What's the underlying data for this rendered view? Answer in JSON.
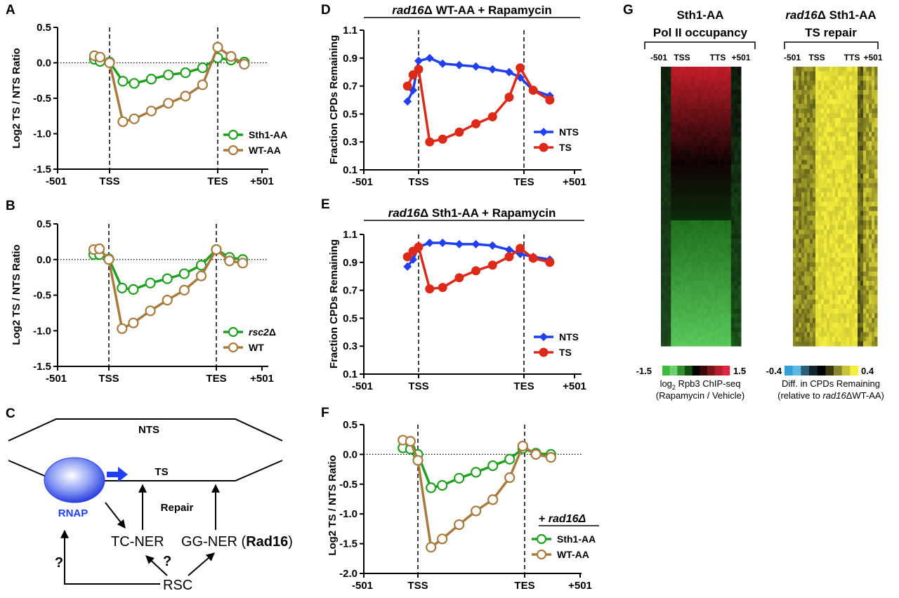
{
  "chart_data": [
    {
      "id": "A",
      "type": "line",
      "panel_label": "A",
      "ylabel": "Log2 TS / NTS Ratio",
      "ylim": [
        -1.5,
        0.5
      ],
      "yticks": [
        "0.5",
        "0.0",
        "-0.5",
        "-1.0",
        "-1.5"
      ],
      "xticks": [
        "-501",
        "TSS",
        "TES",
        "+501"
      ],
      "series": [
        {
          "name": "Sth1-AA",
          "color": "#1fa01f",
          "marker": "open-circle",
          "x": [
            -0.8,
            -0.5,
            0,
            0.7,
            1.3,
            2.2,
            3.1,
            4,
            4.9,
            5.7,
            6.4,
            7.1
          ],
          "values": [
            0.05,
            0.02,
            0.01,
            -0.26,
            -0.29,
            -0.23,
            -0.17,
            -0.14,
            -0.07,
            0.07,
            0.04,
            0.01
          ]
        },
        {
          "name": "WT-AA",
          "color": "#a87a3d",
          "marker": "open-circle",
          "x": [
            -0.8,
            -0.5,
            0,
            0.7,
            1.3,
            2.2,
            3.1,
            4,
            4.9,
            5.7,
            6.4,
            7.1
          ],
          "values": [
            0.1,
            0.08,
            0.0,
            -0.83,
            -0.79,
            -0.68,
            -0.57,
            -0.47,
            -0.31,
            0.22,
            0.09,
            -0.02
          ]
        }
      ]
    },
    {
      "id": "B",
      "type": "line",
      "panel_label": "B",
      "ylabel": "Log2 TS / NTS Ratio",
      "ylim": [
        -1.5,
        0.5
      ],
      "yticks": [
        "0.5",
        "0.0",
        "-0.5",
        "-1.0",
        "-1.5"
      ],
      "xticks": [
        "-501",
        "TSS",
        "TES",
        "+501"
      ],
      "series": [
        {
          "name": "rsc2Δ",
          "color": "#1fa01f",
          "marker": "open-circle",
          "x": [
            -0.8,
            -0.5,
            0,
            0.7,
            1.3,
            2.2,
            3.1,
            4,
            4.9,
            5.7,
            6.4,
            7.1
          ],
          "values": [
            0.07,
            0.07,
            0.01,
            -0.4,
            -0.42,
            -0.33,
            -0.27,
            -0.2,
            -0.08,
            0.14,
            0.03,
            0.0
          ]
        },
        {
          "name": "WT",
          "color": "#a87a3d",
          "marker": "open-circle",
          "x": [
            -0.8,
            -0.5,
            0,
            0.7,
            1.3,
            2.2,
            3.1,
            4,
            4.9,
            5.7,
            6.4,
            7.1
          ],
          "values": [
            0.14,
            0.15,
            0.0,
            -0.97,
            -0.89,
            -0.72,
            -0.57,
            -0.43,
            -0.23,
            0.14,
            -0.02,
            -0.05
          ]
        }
      ]
    },
    {
      "id": "D",
      "type": "line",
      "panel_label": "D",
      "title_italic": "rad16",
      "title_rest": "Δ WT-AA + Rapamycin",
      "ylabel": "Fraction CPDs Remaining",
      "ylim": [
        0.1,
        1.1
      ],
      "yticks": [
        "1.1",
        "0.9",
        "0.7",
        "0.5",
        "0.3",
        "0.1"
      ],
      "xticks": [
        "-501",
        "TSS",
        "TES",
        "+501"
      ],
      "series": [
        {
          "name": "NTS",
          "color": "#1f3ff0",
          "marker": "diamond",
          "x": [
            -0.6,
            -0.3,
            0,
            0.6,
            1.3,
            2.2,
            3.1,
            4,
            4.9,
            5.5,
            6.2,
            7.1
          ],
          "values": [
            0.59,
            0.67,
            0.88,
            0.9,
            0.86,
            0.85,
            0.84,
            0.82,
            0.8,
            0.76,
            0.67,
            0.63
          ]
        },
        {
          "name": "TS",
          "color": "#dd2a18",
          "marker": "circle",
          "x": [
            -0.6,
            -0.3,
            0,
            0.6,
            1.3,
            2.2,
            3.1,
            4,
            4.9,
            5.5,
            6.2,
            7.1
          ],
          "values": [
            0.7,
            0.78,
            0.82,
            0.3,
            0.32,
            0.37,
            0.43,
            0.48,
            0.62,
            0.83,
            0.67,
            0.6
          ]
        }
      ]
    },
    {
      "id": "E",
      "type": "line",
      "panel_label": "E",
      "title_italic": "rad16",
      "title_rest": "Δ Sth1-AA + Rapamycin",
      "ylabel": "Fraction CPDs Remaining",
      "ylim": [
        0.1,
        1.1
      ],
      "yticks": [
        "1.1",
        "0.9",
        "0.7",
        "0.5",
        "0.3",
        "0.1"
      ],
      "xticks": [
        "-501",
        "TSS",
        "TES",
        "+501"
      ],
      "series": [
        {
          "name": "NTS",
          "color": "#1f3ff0",
          "marker": "diamond",
          "x": [
            -0.6,
            -0.3,
            0,
            0.6,
            1.3,
            2.2,
            3.1,
            4,
            4.9,
            5.5,
            6.2,
            7.1
          ],
          "values": [
            0.87,
            0.92,
            1.01,
            1.04,
            1.04,
            1.03,
            1.03,
            1.02,
            0.99,
            0.96,
            0.94,
            0.92
          ]
        },
        {
          "name": "TS",
          "color": "#dd2a18",
          "marker": "circle",
          "x": [
            -0.6,
            -0.3,
            0,
            0.6,
            1.3,
            2.2,
            3.1,
            4,
            4.9,
            5.5,
            6.2,
            7.1
          ],
          "values": [
            0.94,
            0.98,
            1.01,
            0.71,
            0.72,
            0.79,
            0.84,
            0.88,
            0.94,
            1.0,
            0.93,
            0.9
          ]
        }
      ]
    },
    {
      "id": "F",
      "type": "line",
      "panel_label": "F",
      "ylabel": "Log2 TS / NTS Ratio",
      "ylim": [
        -2.0,
        0.5
      ],
      "yticks": [
        "0.5",
        "0.0",
        "-0.5",
        "-1.0",
        "-1.5",
        "-2.0"
      ],
      "xticks": [
        "-501",
        "TSS",
        "TES",
        "+501"
      ],
      "legend_title": "+ rad16Δ",
      "series": [
        {
          "name": "Sth1-AA",
          "color": "#1fa01f",
          "marker": "open-circle",
          "x": [
            -0.8,
            -0.4,
            0,
            0.7,
            1.3,
            2.2,
            3.1,
            4,
            4.9,
            5.6,
            6.3,
            7.1
          ],
          "values": [
            0.11,
            0.09,
            0.0,
            -0.56,
            -0.52,
            -0.4,
            -0.3,
            -0.19,
            -0.08,
            0.1,
            0.02,
            0.0
          ]
        },
        {
          "name": "WT-AA",
          "color": "#a87a3d",
          "marker": "open-circle",
          "x": [
            -0.8,
            -0.4,
            0,
            0.7,
            1.3,
            2.2,
            3.1,
            4,
            4.9,
            5.6,
            6.3,
            7.1
          ],
          "values": [
            0.24,
            0.22,
            -0.1,
            -1.56,
            -1.42,
            -1.18,
            -0.95,
            -0.76,
            -0.39,
            0.14,
            0.0,
            -0.05
          ]
        }
      ]
    },
    {
      "id": "G",
      "type": "heatmap",
      "panel_label": "G",
      "maps": [
        {
          "name": "polII",
          "title1": "Sth1-AA",
          "title2": "Pol II occupancy",
          "xticks": [
            "-501",
            "TSS",
            "TTS",
            "+501"
          ],
          "colorbar_min": "-1.5",
          "colorbar_max": "1.5",
          "colorbar_caption1_pre": "log",
          "colorbar_caption1_sub": "2",
          "colorbar_caption1_post": " Rpb3 ChIP-seq",
          "colorbar_caption2": "(Rapamycin / Vehicle)",
          "colorbar_colors": [
            "#3dbb3d",
            "#6fd06f",
            "#2f8f2f",
            "#125012",
            "#000000",
            "#3a0a0a",
            "#7a1616",
            "#b01f2a",
            "#e0263f"
          ]
        },
        {
          "name": "tsrepair",
          "title1_italic": "rad16",
          "title1_rest": "Δ Sth1-AA",
          "title2": "TS repair",
          "xticks": [
            "-501",
            "TSS",
            "TTS",
            "+501"
          ],
          "colorbar_min": "-0.4",
          "colorbar_max": "0.4",
          "colorbar_caption1": "Diff. in CPDs Remaining",
          "colorbar_caption2_pre": "(relative to ",
          "colorbar_caption2_italic": "rad16",
          "colorbar_caption2_post": "ΔWT-AA)",
          "colorbar_colors": [
            "#2e9fd8",
            "#5fb8e3",
            "#2e5f78",
            "#12242e",
            "#000000",
            "#3b3b10",
            "#87862a",
            "#c7c53a",
            "#f4ef3c"
          ]
        }
      ]
    }
  ],
  "diagram_C": {
    "panel_label": "C",
    "nts_label": "NTS",
    "ts_label": "TS",
    "rnap_label": "RNAP",
    "repair_label": "Repair",
    "tcner_label": "TC-NER",
    "ggner_pre": "GG-NER (",
    "ggner_bold": "Rad16",
    "ggner_post": ")",
    "rsc_label": "RSC",
    "q1": "?",
    "q2": "?"
  }
}
